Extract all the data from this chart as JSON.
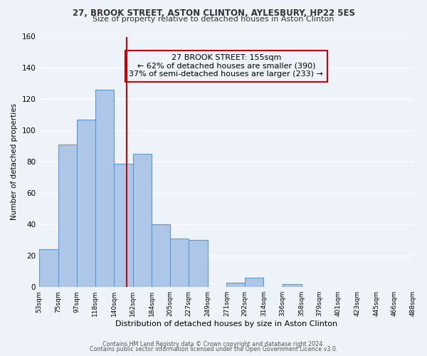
{
  "title1": "27, BROOK STREET, ASTON CLINTON, AYLESBURY, HP22 5ES",
  "title2": "Size of property relative to detached houses in Aston Clinton",
  "xlabel": "Distribution of detached houses by size in Aston Clinton",
  "ylabel": "Number of detached properties",
  "bar_edges": [
    53,
    75,
    97,
    118,
    140,
    162,
    184,
    205,
    227,
    249,
    271,
    292,
    314,
    336,
    358,
    379,
    401,
    423,
    445,
    466,
    488
  ],
  "bar_heights": [
    24,
    91,
    107,
    126,
    79,
    85,
    40,
    31,
    30,
    0,
    3,
    6,
    0,
    2,
    0,
    0,
    0,
    0,
    0,
    0
  ],
  "bar_color": "#aec6e8",
  "bar_edgecolor": "#5b9bd5",
  "ref_line_x": 155,
  "ref_line_color": "#cc0000",
  "annotation_line1": "27 BROOK STREET: 155sqm",
  "annotation_line2": "← 62% of detached houses are smaller (390)",
  "annotation_line3": "37% of semi-detached houses are larger (233) →",
  "annotation_box_edgecolor": "#cc0000",
  "ylim": [
    0,
    160
  ],
  "yticks": [
    0,
    20,
    40,
    60,
    80,
    100,
    120,
    140,
    160
  ],
  "tick_labels": [
    "53sqm",
    "75sqm",
    "97sqm",
    "118sqm",
    "140sqm",
    "162sqm",
    "184sqm",
    "205sqm",
    "227sqm",
    "249sqm",
    "271sqm",
    "292sqm",
    "314sqm",
    "336sqm",
    "358sqm",
    "379sqm",
    "401sqm",
    "423sqm",
    "445sqm",
    "466sqm",
    "488sqm"
  ],
  "footer1": "Contains HM Land Registry data © Crown copyright and database right 2024.",
  "footer2": "Contains public sector information licensed under the Open Government Licence v3.0.",
  "background_color": "#eef2f9",
  "grid_color": "#ffffff",
  "title1_fontsize": 8.5,
  "title2_fontsize": 8.0,
  "ylabel_fontsize": 7.5,
  "xlabel_fontsize": 8.0,
  "tick_fontsize": 6.5,
  "ytick_fontsize": 7.5,
  "footer_fontsize": 5.8,
  "annot_fontsize": 8.0
}
